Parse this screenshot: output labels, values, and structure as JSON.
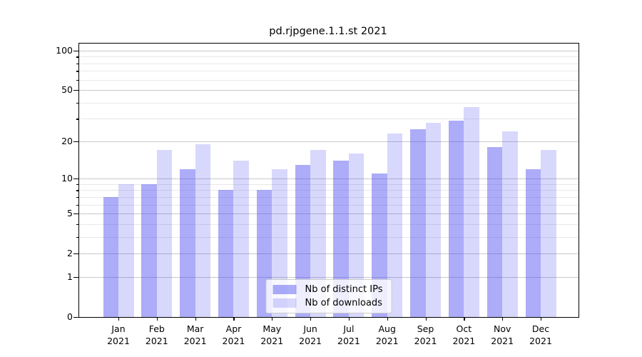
{
  "colors": {
    "ips_bar": "rgba(70,70,240,0.45)",
    "downloads_bar": "rgba(70,70,240,0.21)",
    "grid_minor": "#e8e8e8",
    "grid_major": "#c8c8c8",
    "spine": "#000000",
    "text": "#000000",
    "legend_border": "#cccccc"
  },
  "chart_data": {
    "type": "bar",
    "title": "pd.rjpgene.1.1.st 2021",
    "xlabel": "",
    "ylabel": "",
    "y_scale": "log1p",
    "ylim": [
      0,
      110
    ],
    "grid": true,
    "legend_position": "lower center",
    "year_label": "2021",
    "months": [
      "Jan",
      "Feb",
      "Mar",
      "Apr",
      "May",
      "Jun",
      "Jul",
      "Aug",
      "Sep",
      "Oct",
      "Nov",
      "Dec"
    ],
    "categories": [
      "Jan 2021",
      "Feb 2021",
      "Mar 2021",
      "Apr 2021",
      "May 2021",
      "Jun 2021",
      "Jul 2021",
      "Aug 2021",
      "Sep 2021",
      "Oct 2021",
      "Nov 2021",
      "Dec 2021"
    ],
    "y_ticks": [
      0,
      1,
      2,
      5,
      10,
      20,
      50,
      100
    ],
    "y_minor_ticks": [
      3,
      4,
      6,
      7,
      8,
      9,
      30,
      40,
      60,
      70,
      80,
      90
    ],
    "series": [
      {
        "name": "Nb of distinct IPs",
        "values": [
          7,
          9,
          12,
          8,
          8,
          13,
          14,
          11,
          25,
          29,
          18,
          12
        ]
      },
      {
        "name": "Nb of downloads",
        "values": [
          9,
          17,
          19,
          14,
          12,
          17,
          16,
          23,
          28,
          37,
          24,
          17
        ]
      }
    ]
  }
}
